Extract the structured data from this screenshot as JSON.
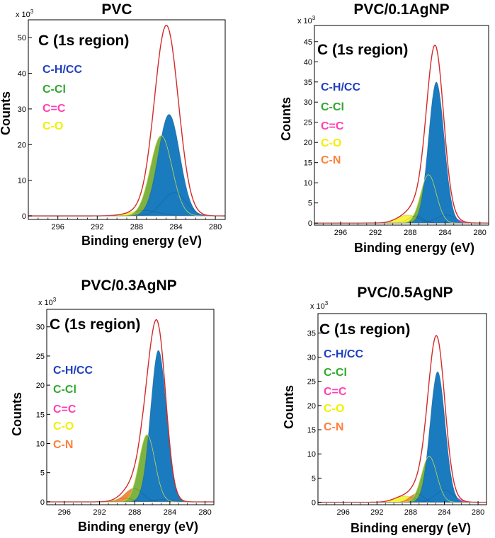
{
  "colors": {
    "CH": "#1a7bbf",
    "CCl": "#7cb342",
    "CC": "#ff4fc3",
    "CO": "#f4f442",
    "CN": "#f08c3c",
    "envelope": "#d42a2a",
    "legend_CH": "#1e3fbf",
    "legend_CCl": "#2ea82e",
    "legend_CC": "#ff3fb4",
    "legend_CO": "#f0f000",
    "legend_CN": "#ff7f3a"
  },
  "chart_data": [
    {
      "type": "area",
      "title": "PVC",
      "region_label": "C (1s region)",
      "xlabel": "Binding energy (eV)",
      "ylabel": "Counts",
      "multiplier": "x 10",
      "multiplier_exp": "3",
      "xlim": [
        299,
        279
      ],
      "xticks": [
        "296",
        "292",
        "288",
        "284",
        "280"
      ],
      "xtick_values": [
        296,
        292,
        288,
        284,
        280
      ],
      "ylim": [
        -1,
        55
      ],
      "yticks": [
        "50",
        "40",
        "30",
        "20",
        "10",
        "0"
      ],
      "ytick_values": [
        50,
        40,
        30,
        20,
        10,
        0
      ],
      "legend": [
        "C-H/CC",
        "C-Cl",
        "C=C",
        "C-O"
      ],
      "components": [
        {
          "name": "C-H/CC",
          "color_key": "CH",
          "center": 284.7,
          "height": 28.5,
          "width": 1.1
        },
        {
          "name": "C-Cl",
          "color_key": "CCl",
          "center": 285.5,
          "height": 22.5,
          "width": 1.1
        },
        {
          "name": "C=C",
          "color_key": "CC",
          "center": 284.2,
          "height": 6.5,
          "width": 1.2
        },
        {
          "name": "C-O",
          "color_key": "CO",
          "center": 287.2,
          "height": 1.5,
          "width": 1.5
        }
      ]
    },
    {
      "type": "area",
      "title": "PVC/0.1AgNP",
      "region_label": "C (1s region)",
      "xlabel": "Binding energy (eV)",
      "ylabel": "Counts",
      "multiplier": "x 10",
      "multiplier_exp": "3",
      "xlim": [
        299,
        279
      ],
      "xticks": [
        "296",
        "292",
        "288",
        "284",
        "280"
      ],
      "xtick_values": [
        296,
        292,
        288,
        284,
        280
      ],
      "ylim": [
        -0.5,
        49
      ],
      "yticks": [
        "45",
        "40",
        "35",
        "30",
        "25",
        "20",
        "15",
        "10",
        "5",
        "0"
      ],
      "ytick_values": [
        45,
        40,
        35,
        30,
        25,
        20,
        15,
        10,
        5,
        0
      ],
      "legend": [
        "C-H/CC",
        "C-Cl",
        "C=C",
        "C-O",
        "C-N"
      ],
      "components": [
        {
          "name": "C-H/CC",
          "color_key": "CH",
          "center": 285.0,
          "height": 35.0,
          "width": 0.9
        },
        {
          "name": "C-Cl",
          "color_key": "CCl",
          "center": 285.9,
          "height": 12.0,
          "width": 0.9
        },
        {
          "name": "C=C",
          "color_key": "CC",
          "center": 283.9,
          "height": 2.0,
          "width": 1.1
        },
        {
          "name": "C-O",
          "color_key": "CO",
          "center": 288.3,
          "height": 2.0,
          "width": 1.2
        },
        {
          "name": "C-N",
          "color_key": "CN",
          "center": 287.4,
          "height": 1.8,
          "width": 0.8
        }
      ]
    },
    {
      "type": "area",
      "title": "PVC/0.3AgNP",
      "region_label": "C (1s region)",
      "xlabel": "Binding energy (eV)",
      "ylabel": "Counts",
      "multiplier": "x 10",
      "multiplier_exp": "3",
      "xlim": [
        298,
        279
      ],
      "xticks": [
        "296",
        "292",
        "288",
        "284",
        "280"
      ],
      "xtick_values": [
        296,
        292,
        288,
        284,
        280
      ],
      "ylim": [
        -0.5,
        33
      ],
      "yticks": [
        "30",
        "25",
        "20",
        "15",
        "10",
        "5",
        "0"
      ],
      "ytick_values": [
        30,
        25,
        20,
        15,
        10,
        5,
        0
      ],
      "legend": [
        "C-H/CC",
        "C-Cl",
        "C=C",
        "C-O",
        "C-N"
      ],
      "components": [
        {
          "name": "C-H/CC",
          "color_key": "CH",
          "center": 285.3,
          "height": 26.0,
          "width": 0.9
        },
        {
          "name": "C-Cl",
          "color_key": "CCl",
          "center": 286.6,
          "height": 11.5,
          "width": 0.9
        },
        {
          "name": "C=C",
          "color_key": "CC",
          "center": 284.8,
          "height": 0.4,
          "width": 1.0
        },
        {
          "name": "C-O",
          "color_key": "CO",
          "center": 289.2,
          "height": 0.6,
          "width": 1.0
        },
        {
          "name": "C-N",
          "color_key": "CN",
          "center": 288.1,
          "height": 2.3,
          "width": 1.0
        }
      ]
    },
    {
      "type": "area",
      "title": "PVC/0.5AgNP",
      "region_label": "C (1s region)",
      "xlabel": "Binding energy (eV)",
      "ylabel": "Counts",
      "multiplier": "x 10",
      "multiplier_exp": "3",
      "xlim": [
        299,
        279
      ],
      "xticks": [
        "296",
        "292",
        "288",
        "284",
        "280"
      ],
      "xtick_values": [
        296,
        292,
        288,
        284,
        280
      ],
      "ylim": [
        -0.5,
        39
      ],
      "yticks": [
        "35",
        "30",
        "25",
        "20",
        "15",
        "10",
        "5",
        "0"
      ],
      "ytick_values": [
        35,
        30,
        25,
        20,
        15,
        10,
        5,
        0
      ],
      "legend": [
        "C-H/CC",
        "C-Cl",
        "C=C",
        "C-O",
        "C-N"
      ],
      "components": [
        {
          "name": "C-H/CC",
          "color_key": "CH",
          "center": 284.8,
          "height": 27.0,
          "width": 0.9
        },
        {
          "name": "C-Cl",
          "color_key": "CCl",
          "center": 285.8,
          "height": 9.5,
          "width": 0.9
        },
        {
          "name": "C=C",
          "color_key": "CC",
          "center": 284.0,
          "height": 2.5,
          "width": 1.1
        },
        {
          "name": "C-O",
          "color_key": "CO",
          "center": 288.7,
          "height": 1.3,
          "width": 1.2
        },
        {
          "name": "C-N",
          "color_key": "CN",
          "center": 287.3,
          "height": 1.8,
          "width": 0.8
        }
      ]
    }
  ]
}
